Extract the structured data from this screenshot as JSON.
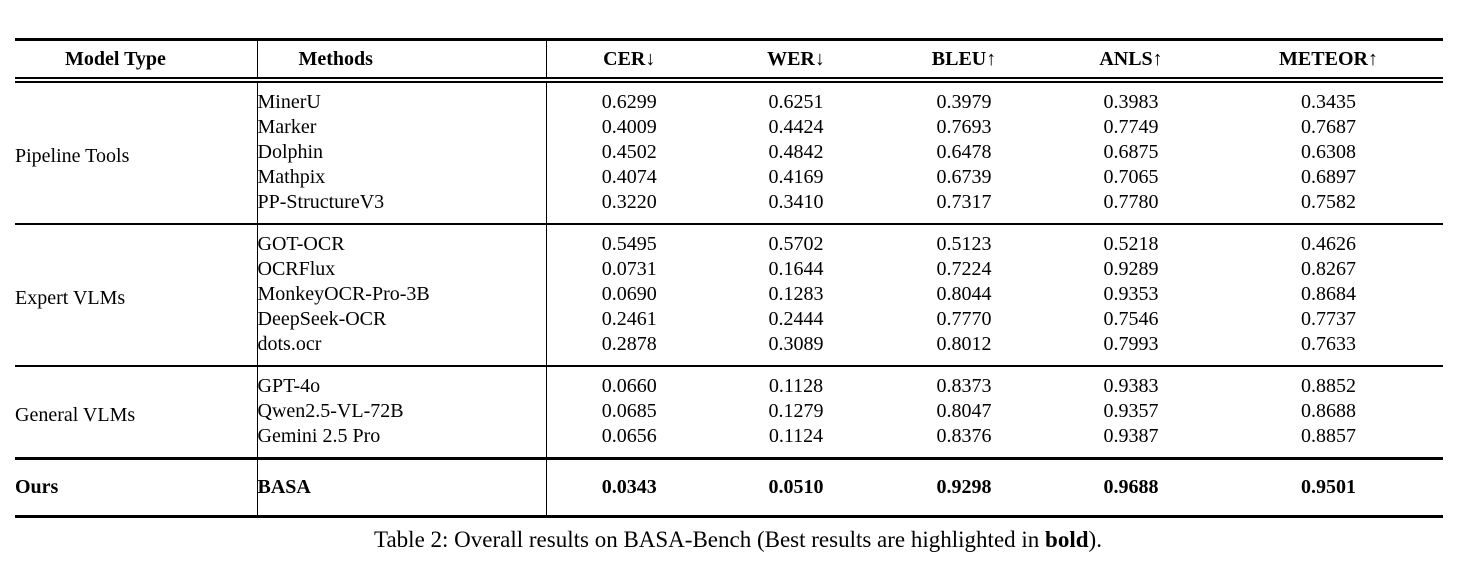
{
  "table": {
    "headers": [
      "Model Type",
      "Methods",
      "CER↓",
      "WER↓",
      "BLEU↑",
      "ANLS↑",
      "METEOR↑"
    ],
    "sections": [
      {
        "model_type": "Pipeline Tools",
        "bold": false,
        "rows": [
          {
            "method": "MinerU",
            "values": [
              "0.6299",
              "0.6251",
              "0.3979",
              "0.3983",
              "0.3435"
            ]
          },
          {
            "method": "Marker",
            "values": [
              "0.4009",
              "0.4424",
              "0.7693",
              "0.7749",
              "0.7687"
            ]
          },
          {
            "method": "Dolphin",
            "values": [
              "0.4502",
              "0.4842",
              "0.6478",
              "0.6875",
              "0.6308"
            ]
          },
          {
            "method": "Mathpix",
            "values": [
              "0.4074",
              "0.4169",
              "0.6739",
              "0.7065",
              "0.6897"
            ]
          },
          {
            "method": "PP-StructureV3",
            "values": [
              "0.3220",
              "0.3410",
              "0.7317",
              "0.7780",
              "0.7582"
            ]
          }
        ]
      },
      {
        "model_type": "Expert VLMs",
        "bold": false,
        "rows": [
          {
            "method": "GOT-OCR",
            "values": [
              "0.5495",
              "0.5702",
              "0.5123",
              "0.5218",
              "0.4626"
            ]
          },
          {
            "method": "OCRFlux",
            "values": [
              "0.0731",
              "0.1644",
              "0.7224",
              "0.9289",
              "0.8267"
            ]
          },
          {
            "method": "MonkeyOCR-Pro-3B",
            "values": [
              "0.0690",
              "0.1283",
              "0.8044",
              "0.9353",
              "0.8684"
            ]
          },
          {
            "method": "DeepSeek-OCR",
            "values": [
              "0.2461",
              "0.2444",
              "0.7770",
              "0.7546",
              "0.7737"
            ]
          },
          {
            "method": "dots.ocr",
            "values": [
              "0.2878",
              "0.3089",
              "0.8012",
              "0.7993",
              "0.7633"
            ]
          }
        ]
      },
      {
        "model_type": "General VLMs",
        "bold": false,
        "rows": [
          {
            "method": "GPT-4o",
            "values": [
              "0.0660",
              "0.1128",
              "0.8373",
              "0.9383",
              "0.8852"
            ]
          },
          {
            "method": "Qwen2.5-VL-72B",
            "values": [
              "0.0685",
              "0.1279",
              "0.8047",
              "0.9357",
              "0.8688"
            ]
          },
          {
            "method": "Gemini 2.5 Pro",
            "values": [
              "0.0656",
              "0.1124",
              "0.8376",
              "0.9387",
              "0.8857"
            ]
          }
        ]
      },
      {
        "model_type": "Ours",
        "bold": true,
        "rows": [
          {
            "method": "BASA",
            "values": [
              "0.0343",
              "0.0510",
              "0.9298",
              "0.9688",
              "0.9501"
            ]
          }
        ]
      }
    ],
    "caption": {
      "prefix": "Table 2: Overall results on BASA-Bench (Best results are highlighted in ",
      "bold_word": "bold",
      "suffix": ")."
    }
  }
}
